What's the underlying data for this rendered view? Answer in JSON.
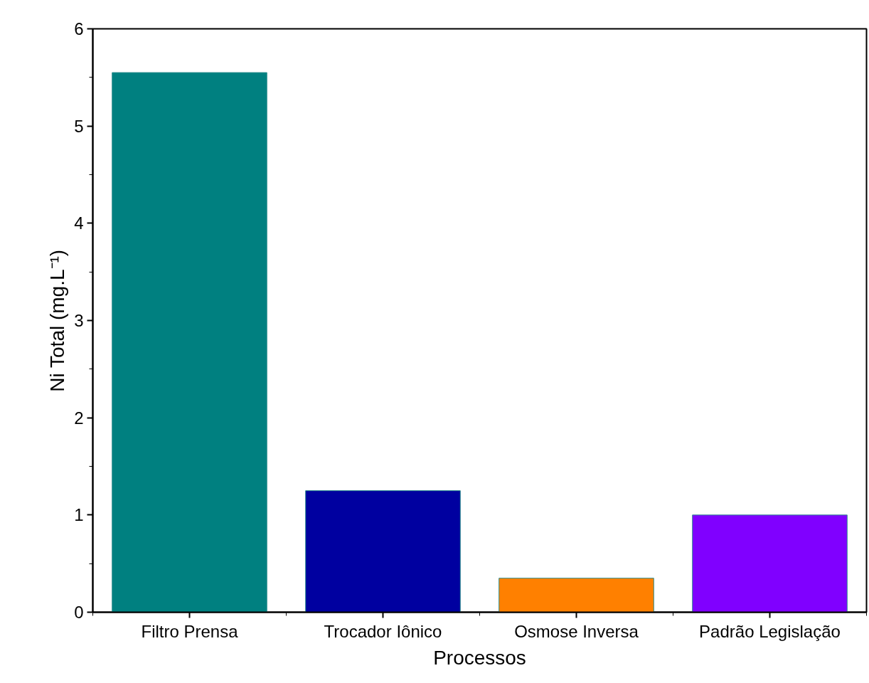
{
  "chart_data": {
    "type": "bar",
    "xlabel": "Processos",
    "ylabel": "Ni Total (mg.L⁻¹)",
    "categories": [
      "Filtro Prensa",
      "Trocador Iônico",
      "Osmose Inversa",
      "Padrão Legislação"
    ],
    "values": [
      5.55,
      1.25,
      0.35,
      1.0
    ],
    "colors": [
      "#008080",
      "#0000a0",
      "#ff8000",
      "#8000ff"
    ],
    "ylim": [
      0,
      6
    ],
    "yticks": [
      0,
      1,
      2,
      3,
      4,
      5,
      6
    ],
    "grid": false
  }
}
